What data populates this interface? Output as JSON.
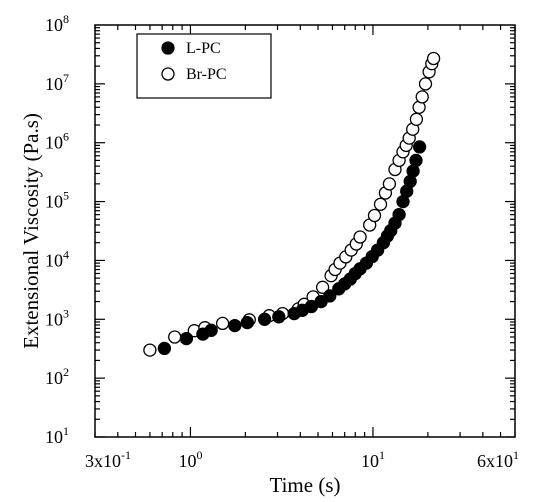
{
  "chart_data": {
    "type": "scatter",
    "xlabel": "Time (s)",
    "ylabel": "Extensional Viscosity (Pa.s)",
    "xscale": "log",
    "yscale": "log",
    "xlim": [
      0.3,
      60
    ],
    "ylim": [
      10,
      100000000
    ],
    "x_ticks": [
      {
        "value": 0.3,
        "label": "3x10",
        "exp": "-1"
      },
      {
        "value": 1,
        "label": "10",
        "exp": "0"
      },
      {
        "value": 10,
        "label": "10",
        "exp": "1"
      },
      {
        "value": 60,
        "label": "6x10",
        "exp": "1"
      }
    ],
    "y_ticks": [
      {
        "value": 10,
        "label": "10",
        "exp": "1"
      },
      {
        "value": 100,
        "label": "10",
        "exp": "2"
      },
      {
        "value": 1000,
        "label": "10",
        "exp": "3"
      },
      {
        "value": 10000,
        "label": "10",
        "exp": "4"
      },
      {
        "value": 100000,
        "label": "10",
        "exp": "5"
      },
      {
        "value": 1000000,
        "label": "10",
        "exp": "6"
      },
      {
        "value": 10000000,
        "label": "10",
        "exp": "7"
      },
      {
        "value": 100000000,
        "label": "10",
        "exp": "8"
      }
    ],
    "legend": {
      "position": "top-left"
    },
    "grid": false,
    "series": [
      {
        "name": "L-PC",
        "marker": "filled-circle",
        "points": [
          [
            0.72,
            320
          ],
          [
            0.95,
            470
          ],
          [
            1.17,
            560
          ],
          [
            1.3,
            650
          ],
          [
            1.75,
            780
          ],
          [
            2.05,
            880
          ],
          [
            2.55,
            1000
          ],
          [
            3.05,
            1100
          ],
          [
            3.7,
            1250
          ],
          [
            4.1,
            1420
          ],
          [
            4.6,
            1650
          ],
          [
            5.2,
            2000
          ],
          [
            5.8,
            2500
          ],
          [
            6.5,
            3300
          ],
          [
            7.0,
            4000
          ],
          [
            7.5,
            4800
          ],
          [
            8.0,
            6000
          ],
          [
            8.5,
            7200
          ],
          [
            9.2,
            9000
          ],
          [
            9.9,
            11600
          ],
          [
            10.6,
            15000
          ],
          [
            11.4,
            20000
          ],
          [
            12.0,
            26000
          ],
          [
            12.5,
            32000
          ],
          [
            13.2,
            43000
          ],
          [
            13.9,
            60000
          ],
          [
            14.6,
            100000
          ],
          [
            15.3,
            150000
          ],
          [
            16.0,
            220000
          ],
          [
            16.6,
            330000
          ],
          [
            17.2,
            500000
          ],
          [
            18.0,
            850000
          ]
        ]
      },
      {
        "name": "Br-PC",
        "marker": "open-circle",
        "points": [
          [
            0.6,
            300
          ],
          [
            0.82,
            500
          ],
          [
            1.05,
            640
          ],
          [
            1.2,
            720
          ],
          [
            1.5,
            850
          ],
          [
            2.1,
            980
          ],
          [
            2.7,
            1150
          ],
          [
            3.2,
            1250
          ],
          [
            3.9,
            1500
          ],
          [
            4.2,
            1800
          ],
          [
            4.7,
            2400
          ],
          [
            5.3,
            3500
          ],
          [
            5.9,
            5500
          ],
          [
            6.2,
            7000
          ],
          [
            6.6,
            9000
          ],
          [
            7.1,
            11500
          ],
          [
            7.6,
            15000
          ],
          [
            8.1,
            19000
          ],
          [
            8.5,
            25000
          ],
          [
            9.6,
            40000
          ],
          [
            10.2,
            58000
          ],
          [
            11.0,
            90000
          ],
          [
            11.7,
            140000
          ],
          [
            12.3,
            200000
          ],
          [
            13.2,
            350000
          ],
          [
            13.9,
            500000
          ],
          [
            14.6,
            700000
          ],
          [
            15.2,
            900000
          ],
          [
            15.8,
            1200000
          ],
          [
            16.5,
            1700000
          ],
          [
            17.3,
            2500000
          ],
          [
            17.9,
            4000000
          ],
          [
            18.6,
            6000000
          ],
          [
            19.4,
            10000000
          ],
          [
            20.3,
            16000000
          ],
          [
            21.0,
            22000000
          ],
          [
            21.5,
            27000000
          ]
        ]
      }
    ]
  }
}
